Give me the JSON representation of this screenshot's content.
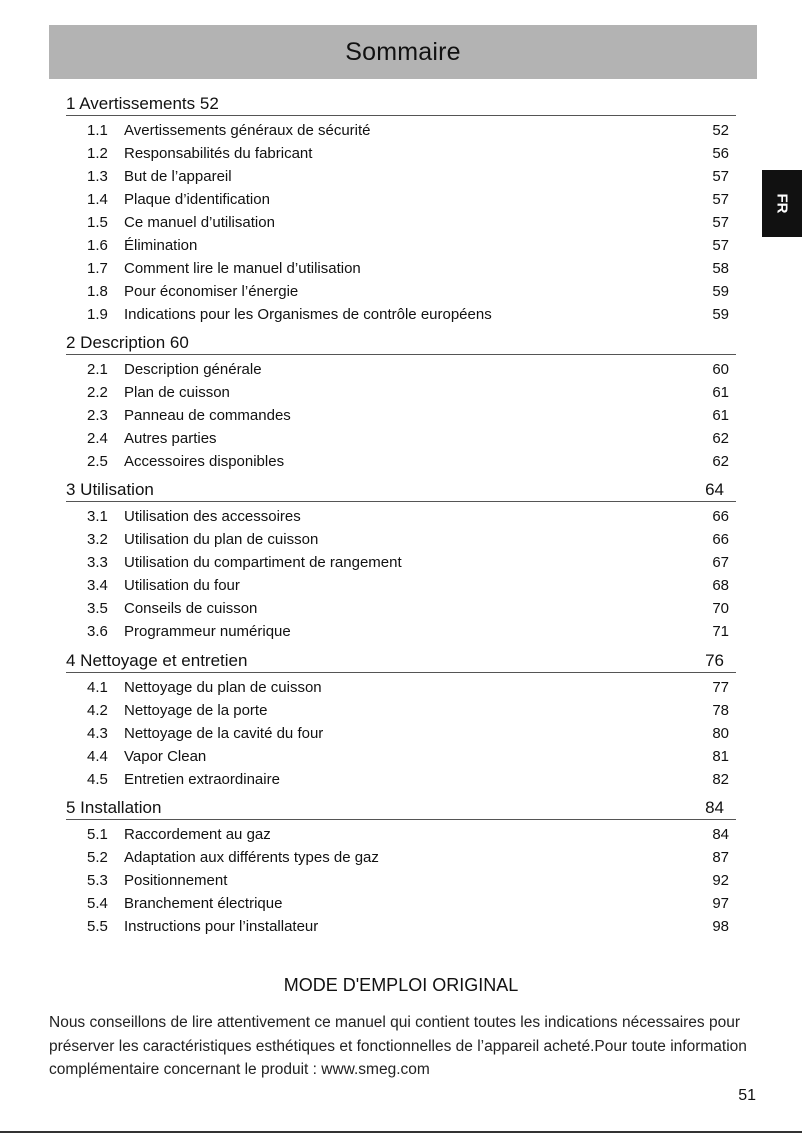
{
  "title": "Sommaire",
  "language_tab": "FR",
  "sections": [
    {
      "heading": "1 Avertissements 52",
      "page": "",
      "items": [
        {
          "num": "1.1",
          "title": "Avertissements généraux de sécurité",
          "page": "52"
        },
        {
          "num": "1.2",
          "title": "Responsabilités du fabricant",
          "page": "56"
        },
        {
          "num": "1.3",
          "title": "But de l’appareil",
          "page": "57"
        },
        {
          "num": "1.4",
          "title": "Plaque d’identification",
          "page": "57"
        },
        {
          "num": "1.5",
          "title": "Ce manuel d’utilisation",
          "page": "57"
        },
        {
          "num": "1.6",
          "title": "Élimination",
          "page": "57"
        },
        {
          "num": "1.7",
          "title": "Comment lire le manuel d’utilisation",
          "page": "58"
        },
        {
          "num": "1.8",
          "title": "Pour économiser l’énergie",
          "page": "59"
        },
        {
          "num": "1.9",
          "title": "Indications pour les Organismes de contrôle européens",
          "page": "59"
        }
      ]
    },
    {
      "heading": "2 Description 60",
      "page": "",
      "items": [
        {
          "num": "2.1",
          "title": "Description générale",
          "page": "60"
        },
        {
          "num": "2.2",
          "title": "Plan de cuisson",
          "page": "61"
        },
        {
          "num": "2.3",
          "title": "Panneau de commandes",
          "page": "61"
        },
        {
          "num": "2.4",
          "title": "Autres parties",
          "page": "62"
        },
        {
          "num": "2.5",
          "title": "Accessoires disponibles",
          "page": "62"
        }
      ]
    },
    {
      "heading": "3 Utilisation",
      "page": "64",
      "items": [
        {
          "num": "3.1",
          "title": "Utilisation des accessoires",
          "page": "66"
        },
        {
          "num": "3.2",
          "title": "Utilisation du plan de cuisson",
          "page": "66"
        },
        {
          "num": "3.3",
          "title": "Utilisation du compartiment de rangement",
          "page": "67"
        },
        {
          "num": "3.4",
          "title": "Utilisation du four",
          "page": "68"
        },
        {
          "num": "3.5",
          "title": "Conseils de cuisson",
          "page": "70"
        },
        {
          "num": "3.6",
          "title": "Programmeur numérique",
          "page": "71"
        }
      ]
    },
    {
      "heading": "4 Nettoyage et entretien",
      "page": "76",
      "items": [
        {
          "num": "4.1",
          "title": "Nettoyage du plan de cuisson",
          "page": "77"
        },
        {
          "num": "4.2",
          "title": "Nettoyage de la porte",
          "page": "78"
        },
        {
          "num": "4.3",
          "title": "Nettoyage de la cavité du four",
          "page": "80"
        },
        {
          "num": "4.4",
          "title": "Vapor Clean",
          "page": "81"
        },
        {
          "num": "4.5",
          "title": "Entretien extraordinaire",
          "page": "82"
        }
      ]
    },
    {
      "heading": "5 Installation",
      "page": "84",
      "items": [
        {
          "num": "5.1",
          "title": "Raccordement au gaz",
          "page": "84"
        },
        {
          "num": "5.2",
          "title": "Adaptation aux différents types de gaz",
          "page": "87"
        },
        {
          "num": "5.3",
          "title": "Positionnement",
          "page": "92"
        },
        {
          "num": "5.4",
          "title": "Branchement électrique",
          "page": "97"
        },
        {
          "num": "5.5",
          "title": "Instructions pour l’installateur",
          "page": "98"
        }
      ]
    }
  ],
  "mode_title": "MODE D'EMPLOI ORIGINAL",
  "intro": "Nous conseillons de lire attentivement ce manuel qui contient toutes les indications nécessaires pour préserver les caractéristiques esthétiques et fonctionnelles de l’appareil acheté.Pour toute information complémentaire concernant le produit : www.smeg.com",
  "page_number": "51"
}
